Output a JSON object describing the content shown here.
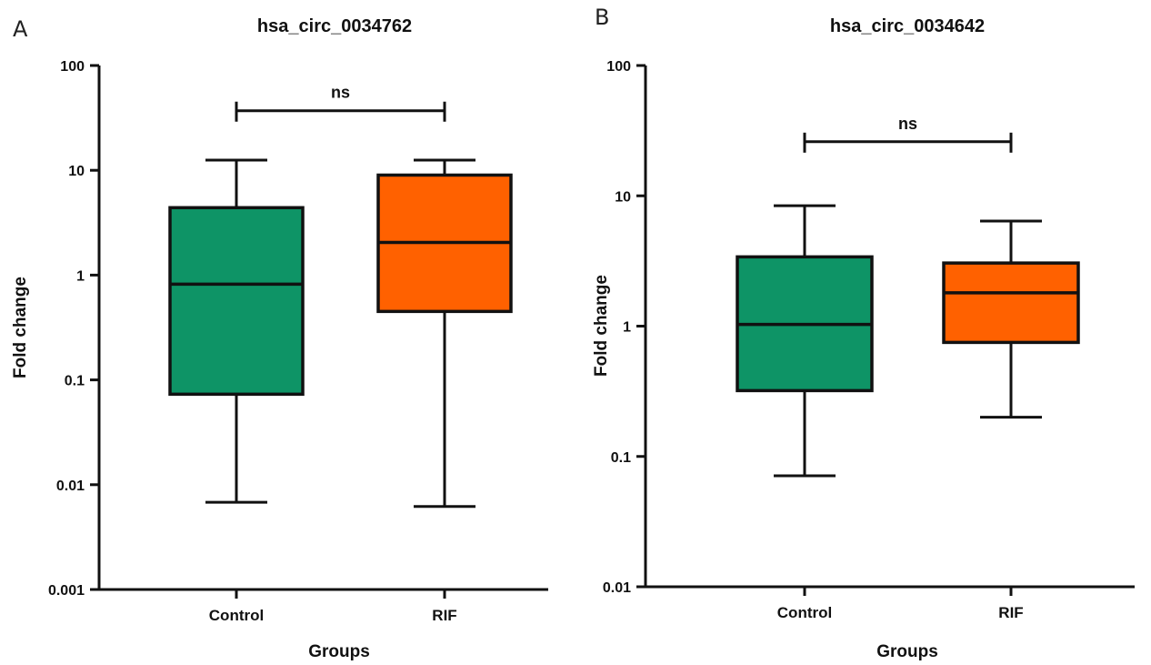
{
  "chart_data": [
    {
      "type": "box",
      "panel": "A",
      "title": "hsa_circ_0034762",
      "xlabel": "Groups",
      "ylabel": "Fold change",
      "yscale": "log",
      "ylim": [
        0.001,
        100
      ],
      "yticks": [
        0.001,
        0.01,
        0.1,
        1,
        10,
        100
      ],
      "ytick_labels": [
        "0.001",
        "0.01",
        "0.1",
        "1",
        "10",
        "100"
      ],
      "categories": [
        "Control",
        "RIF"
      ],
      "boxes": [
        {
          "group": "Control",
          "whisker_low": 0.0068,
          "q1": 0.073,
          "median": 0.82,
          "q3": 4.4,
          "whisker_high": 12.5,
          "color": "#0e9466"
        },
        {
          "group": "RIF",
          "whisker_low": 0.0062,
          "q1": 0.45,
          "median": 2.05,
          "q3": 9.0,
          "whisker_high": 12.5,
          "color": "#ff6100"
        }
      ],
      "significance": {
        "between": [
          "Control",
          "RIF"
        ],
        "label": "ns",
        "y": 37
      }
    },
    {
      "type": "box",
      "panel": "B",
      "title": "hsa_circ_0034642",
      "xlabel": "Groups",
      "ylabel": "Fold change",
      "yscale": "log",
      "ylim": [
        0.01,
        100
      ],
      "yticks": [
        0.01,
        0.1,
        1,
        10,
        100
      ],
      "ytick_labels": [
        "0.01",
        "0.1",
        "1",
        "10",
        "100"
      ],
      "categories": [
        "Control",
        "RIF"
      ],
      "boxes": [
        {
          "group": "Control",
          "whisker_low": 0.071,
          "q1": 0.32,
          "median": 1.03,
          "q3": 3.4,
          "whisker_high": 8.4,
          "color": "#0e9466"
        },
        {
          "group": "RIF",
          "whisker_low": 0.2,
          "q1": 0.75,
          "median": 1.8,
          "q3": 3.05,
          "whisker_high": 6.4,
          "color": "#ff6100"
        }
      ],
      "significance": {
        "between": [
          "Control",
          "RIF"
        ],
        "label": "ns",
        "y": 26
      }
    }
  ]
}
